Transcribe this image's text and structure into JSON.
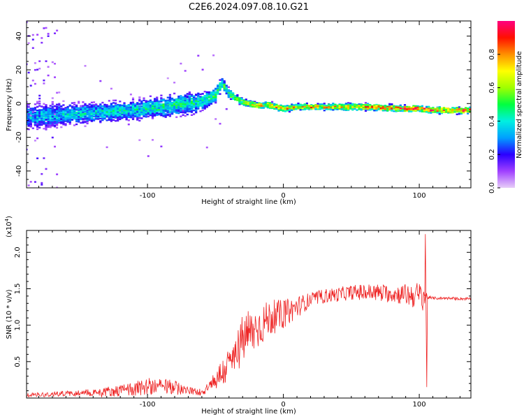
{
  "title": "C2E6.2024.097.08.10.G21",
  "chart_data": [
    {
      "type": "heatmap",
      "title": "C2E6.2024.097.08.10.G21",
      "xlabel": "Height of straight line (km)",
      "ylabel": "Frequency (Hz)",
      "xlim": [
        -189,
        138
      ],
      "ylim": [
        -50,
        49
      ],
      "xticks": [
        -100,
        0,
        100
      ],
      "xtick_labels": [
        "-100",
        "0",
        "100"
      ],
      "yticks": [
        -40,
        -20,
        0,
        20,
        40
      ],
      "ytick_labels": [
        "-40",
        "-20",
        "0",
        "20",
        "40"
      ],
      "colorbar": {
        "label": "Normalized spectral amplitude",
        "range": [
          0,
          1
        ],
        "ticks": [
          0.0,
          0.2,
          0.4,
          0.6,
          0.8
        ],
        "tick_labels": [
          "0.0",
          "0.2",
          "0.4",
          "0.6",
          "0.8"
        ],
        "colors": [
          "#e8cef8",
          "#a040ff",
          "#2a00ff",
          "#00a0ff",
          "#00f0e0",
          "#00ff40",
          "#a0ff00",
          "#ffff00",
          "#ff9000",
          "#ff1000",
          "#ff0080"
        ]
      },
      "ridge": {
        "x": [
          -189,
          -170,
          -150,
          -130,
          -110,
          -90,
          -70,
          -60,
          -50,
          -45,
          -40,
          -30,
          -20,
          -10,
          0,
          10,
          30,
          60,
          90,
          100,
          110,
          138
        ],
        "frequency": [
          -8,
          -7,
          -6,
          -5,
          -4,
          -2,
          0,
          1,
          5,
          12,
          6,
          1,
          -1,
          -1,
          -3,
          -2,
          -2,
          -2,
          -3,
          -3,
          -4,
          -4
        ],
        "spread": [
          9,
          8,
          7,
          7,
          7,
          7,
          8,
          6,
          5,
          4,
          3,
          2,
          2,
          2,
          2,
          2,
          2,
          2,
          2,
          2,
          2,
          2
        ],
        "peak_amplitude": [
          0.4,
          0.4,
          0.45,
          0.45,
          0.45,
          0.5,
          0.5,
          0.5,
          0.55,
          0.55,
          0.6,
          0.7,
          0.8,
          0.8,
          0.85,
          0.85,
          0.85,
          0.85,
          0.95,
          0.95,
          0.95,
          0.95
        ]
      }
    },
    {
      "type": "line",
      "series": [
        {
          "name": "SNR",
          "color": "#ee2222",
          "envelope_x": [
            -189,
            -150,
            -120,
            -100,
            -80,
            -70,
            -60,
            -50,
            -40,
            -35,
            -30,
            -20,
            -10,
            0,
            10,
            20,
            30,
            40,
            50,
            60,
            70,
            80,
            90,
            100,
            104,
            106,
            110,
            120,
            138
          ],
          "envelope_mean": [
            0.04,
            0.07,
            0.1,
            0.16,
            0.15,
            0.1,
            0.08,
            0.25,
            0.45,
            0.6,
            0.8,
            0.95,
            1.1,
            1.15,
            1.25,
            1.35,
            1.4,
            1.42,
            1.45,
            1.45,
            1.45,
            1.43,
            1.42,
            1.4,
            1.4,
            1.38,
            1.37,
            1.37,
            1.36
          ],
          "envelope_noise": [
            0.03,
            0.04,
            0.08,
            0.12,
            0.1,
            0.05,
            0.05,
            0.15,
            0.25,
            0.3,
            0.35,
            0.3,
            0.25,
            0.2,
            0.15,
            0.1,
            0.1,
            0.1,
            0.1,
            0.12,
            0.12,
            0.12,
            0.15,
            0.2,
            0.2,
            0.02,
            0.02,
            0.02,
            0.02
          ]
        }
      ],
      "events": [
        {
          "x": 104.5,
          "y": 2.25
        },
        {
          "x": 105.5,
          "y": 0.15
        }
      ],
      "xlabel": "Height of straight line (km)",
      "ylabel": "SNR (10 * v/v)",
      "multiplier": "(x10",
      "multiplier_exp": "4",
      "multiplier_close": ")",
      "xlim": [
        -189,
        138
      ],
      "ylim": [
        0,
        2.3
      ],
      "xticks": [
        -100,
        0,
        100
      ],
      "xtick_labels": [
        "-100",
        "0",
        "100"
      ],
      "yticks": [
        0.5,
        1.0,
        1.5,
        2.0
      ],
      "ytick_labels": [
        "0.5",
        "1.0",
        "1.5",
        "2.0"
      ]
    }
  ]
}
